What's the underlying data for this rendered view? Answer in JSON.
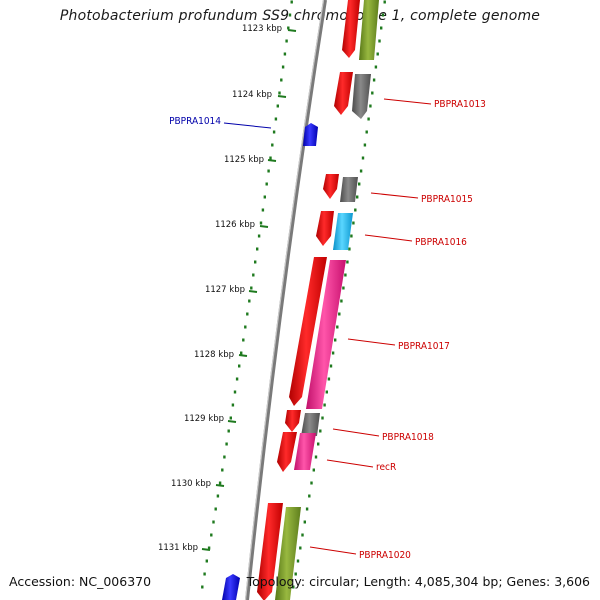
{
  "title": "Photobacterium profundum SS9 chromosome 1, complete genome",
  "footer": {
    "accession": "Accession: NC_006370",
    "summary": "Topology: circular; Length: 4,085,304 bp; Genes: 3,606"
  },
  "colors": {
    "backbone": "#8c8c8c",
    "tick": "#1f7a1f",
    "label_red": "#cc0000",
    "label_blue": "#0000aa",
    "cds_red": "#ee1111",
    "gray": "#6e6e6e",
    "olive": "#7a9a2a",
    "cyan": "#22b8ee",
    "pink": "#ee2288",
    "blue": "#1515e0"
  },
  "kbp_ticks": [
    "1123 kbp",
    "1124 kbp",
    "1125 kbp",
    "1126 kbp",
    "1127 kbp",
    "1128 kbp",
    "1129 kbp",
    "1130 kbp",
    "1131 kbp"
  ],
  "gene_labels": [
    {
      "text": "PBPRA1013",
      "color": "label_red"
    },
    {
      "text": "PBPRA1014",
      "color": "label_blue"
    },
    {
      "text": "PBPRA1015",
      "color": "label_red"
    },
    {
      "text": "PBPRA1016",
      "color": "label_red"
    },
    {
      "text": "PBPRA1017",
      "color": "label_red"
    },
    {
      "text": "PBPRA1018",
      "color": "label_red"
    },
    {
      "text": "recR",
      "color": "label_red"
    },
    {
      "text": "PBPRA1020",
      "color": "label_red"
    }
  ]
}
